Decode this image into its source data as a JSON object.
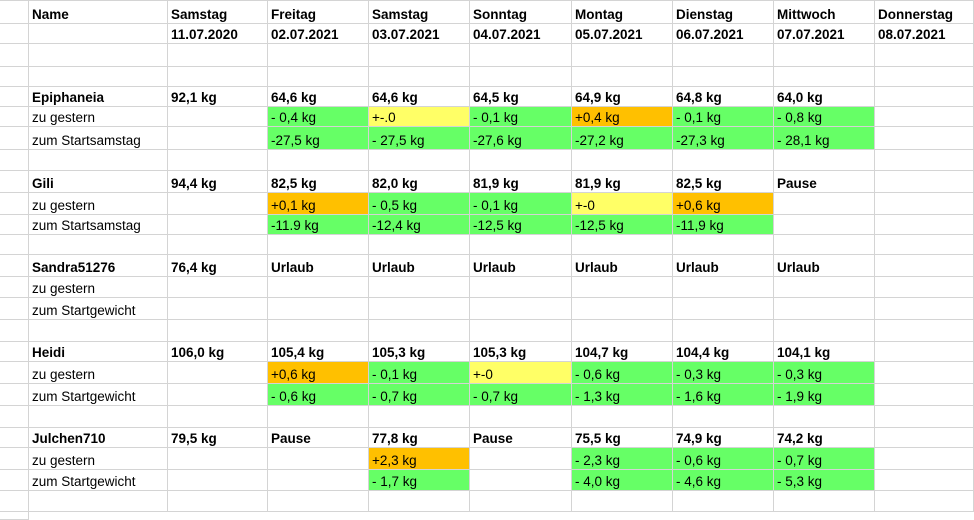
{
  "columns": [
    {
      "day": "Samstag",
      "date": "11.07.2020"
    },
    {
      "day": "Freitag",
      "date": "02.07.2021"
    },
    {
      "day": "Samstag",
      "date": "03.07.2021"
    },
    {
      "day": "Sonntag",
      "date": "04.07.2021"
    },
    {
      "day": "Montag",
      "date": "05.07.2021"
    },
    {
      "day": "Dienstag",
      "date": "06.07.2021"
    },
    {
      "day": "Mittwoch",
      "date": "07.07.2021"
    },
    {
      "day": "Donnerstag",
      "date": "08.07.2021"
    }
  ],
  "header_name": "Name",
  "colors": {
    "green": "#66ff66",
    "yellow": "#ffff66",
    "orange": "#ffc000"
  },
  "people": [
    {
      "name": "Epiphaneia",
      "weights": [
        "92,1 kg",
        "64,6 kg",
        "64,6 kg",
        "64,5 kg",
        "64,9 kg",
        "64,8 kg",
        "64,0 kg",
        ""
      ],
      "row2_label": "zu gestern",
      "row2": [
        {
          "v": "",
          "c": ""
        },
        {
          "v": "- 0,4 kg",
          "c": "green"
        },
        {
          "v": "+-.0",
          "c": "yellow"
        },
        {
          "v": "- 0,1 kg",
          "c": "green"
        },
        {
          "v": "+0,4 kg",
          "c": "orange"
        },
        {
          "v": "- 0,1 kg",
          "c": "green"
        },
        {
          "v": "- 0,8 kg",
          "c": "green"
        },
        {
          "v": "",
          "c": ""
        }
      ],
      "row3_label": "zum Startsamstag",
      "row3": [
        {
          "v": "",
          "c": ""
        },
        {
          "v": "-27,5 kg",
          "c": "green"
        },
        {
          "v": "- 27,5 kg",
          "c": "green"
        },
        {
          "v": "-27,6 kg",
          "c": "green"
        },
        {
          "v": "-27,2 kg",
          "c": "green"
        },
        {
          "v": "-27,3 kg",
          "c": "green"
        },
        {
          "v": "- 28,1 kg",
          "c": "green"
        },
        {
          "v": "",
          "c": ""
        }
      ]
    },
    {
      "name": "Gili",
      "weights": [
        "94,4 kg",
        "82,5 kg",
        "82,0 kg",
        "81,9 kg",
        "81,9 kg",
        "82,5 kg",
        "Pause",
        ""
      ],
      "row2_label": "zu gestern",
      "row2": [
        {
          "v": "",
          "c": ""
        },
        {
          "v": "+0,1 kg",
          "c": "orange"
        },
        {
          "v": "- 0,5 kg",
          "c": "green"
        },
        {
          "v": "- 0,1 kg",
          "c": "green"
        },
        {
          "v": "+-0",
          "c": "yellow"
        },
        {
          "v": "+0,6 kg",
          "c": "orange"
        },
        {
          "v": "",
          "c": ""
        },
        {
          "v": "",
          "c": ""
        }
      ],
      "row3_label": "zum Startsamstag",
      "row3": [
        {
          "v": "",
          "c": ""
        },
        {
          "v": "-11.9 kg",
          "c": "green"
        },
        {
          "v": "-12,4 kg",
          "c": "green"
        },
        {
          "v": "-12,5 kg",
          "c": "green"
        },
        {
          "v": "-12,5 kg",
          "c": "green"
        },
        {
          "v": "-11,9 kg",
          "c": "green"
        },
        {
          "v": "",
          "c": ""
        },
        {
          "v": "",
          "c": ""
        }
      ]
    },
    {
      "name": "Sandra51276",
      "weights": [
        "76,4 kg",
        "Urlaub",
        "Urlaub",
        "Urlaub",
        "Urlaub",
        "Urlaub",
        "Urlaub",
        ""
      ],
      "row2_label": "zu gestern",
      "row2": [
        {
          "v": "",
          "c": ""
        },
        {
          "v": "",
          "c": ""
        },
        {
          "v": "",
          "c": ""
        },
        {
          "v": "",
          "c": ""
        },
        {
          "v": "",
          "c": ""
        },
        {
          "v": "",
          "c": ""
        },
        {
          "v": "",
          "c": ""
        },
        {
          "v": "",
          "c": ""
        }
      ],
      "row3_label": "zum Startgewicht",
      "row3": [
        {
          "v": "",
          "c": ""
        },
        {
          "v": "",
          "c": ""
        },
        {
          "v": "",
          "c": ""
        },
        {
          "v": "",
          "c": ""
        },
        {
          "v": "",
          "c": ""
        },
        {
          "v": "",
          "c": ""
        },
        {
          "v": "",
          "c": ""
        },
        {
          "v": "",
          "c": ""
        }
      ]
    },
    {
      "name": "Heidi",
      "weights": [
        "106,0 kg",
        "105,4 kg",
        "105,3 kg",
        "105,3 kg",
        "104,7 kg",
        "104,4 kg",
        "104,1 kg",
        ""
      ],
      "row2_label": "zu gestern",
      "row2": [
        {
          "v": "",
          "c": ""
        },
        {
          "v": "+0,6 kg",
          "c": "orange"
        },
        {
          "v": "- 0,1 kg",
          "c": "green"
        },
        {
          "v": "+-0",
          "c": "yellow"
        },
        {
          "v": "- 0,6 kg",
          "c": "green"
        },
        {
          "v": "- 0,3 kg",
          "c": "green"
        },
        {
          "v": "- 0,3 kg",
          "c": "green"
        },
        {
          "v": "",
          "c": ""
        }
      ],
      "row3_label": "zum Startgewicht",
      "row3": [
        {
          "v": "",
          "c": ""
        },
        {
          "v": "- 0,6 kg",
          "c": "green"
        },
        {
          "v": "- 0,7 kg",
          "c": "green"
        },
        {
          "v": "- 0,7 kg",
          "c": "green"
        },
        {
          "v": "- 1,3 kg",
          "c": "green"
        },
        {
          "v": "- 1,6 kg",
          "c": "green"
        },
        {
          "v": "- 1,9 kg",
          "c": "green"
        },
        {
          "v": "",
          "c": ""
        }
      ]
    },
    {
      "name": "Julchen710",
      "weights": [
        "79,5 kg",
        "Pause",
        "77,8 kg",
        "Pause",
        "75,5 kg",
        "74,9 kg",
        "74,2 kg",
        ""
      ],
      "row2_label": "zu gestern",
      "row2": [
        {
          "v": "",
          "c": ""
        },
        {
          "v": "",
          "c": ""
        },
        {
          "v": "+2,3 kg",
          "c": "orange"
        },
        {
          "v": "",
          "c": ""
        },
        {
          "v": "- 2,3 kg",
          "c": "green"
        },
        {
          "v": "- 0,6 kg",
          "c": "green"
        },
        {
          "v": "- 0,7 kg",
          "c": "green"
        },
        {
          "v": "",
          "c": ""
        }
      ],
      "row3_label": "zum Startgewicht",
      "row3": [
        {
          "v": "",
          "c": ""
        },
        {
          "v": "",
          "c": ""
        },
        {
          "v": "- 1,7 kg",
          "c": "green"
        },
        {
          "v": "",
          "c": ""
        },
        {
          "v": "- 4,0 kg",
          "c": "green"
        },
        {
          "v": "- 4,6 kg",
          "c": "green"
        },
        {
          "v": "- 5,3 kg",
          "c": "green"
        },
        {
          "v": "",
          "c": ""
        }
      ]
    }
  ]
}
